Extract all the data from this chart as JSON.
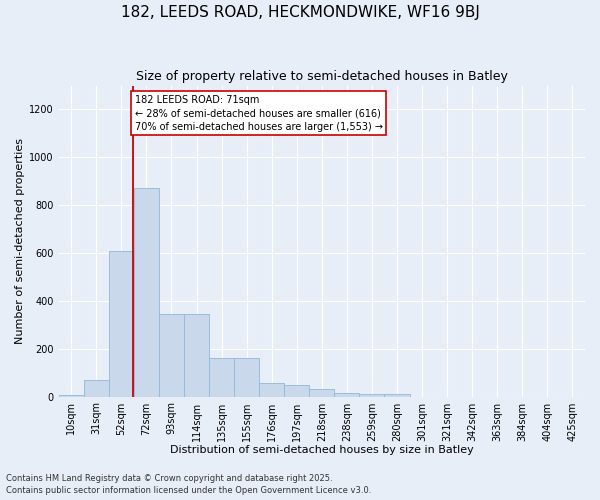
{
  "title": "182, LEEDS ROAD, HECKMONDWIKE, WF16 9BJ",
  "subtitle": "Size of property relative to semi-detached houses in Batley",
  "xlabel": "Distribution of semi-detached houses by size in Batley",
  "ylabel": "Number of semi-detached properties",
  "footnote1": "Contains HM Land Registry data © Crown copyright and database right 2025.",
  "footnote2": "Contains public sector information licensed under the Open Government Licence v3.0.",
  "bin_labels": [
    "10sqm",
    "31sqm",
    "52sqm",
    "72sqm",
    "93sqm",
    "114sqm",
    "135sqm",
    "155sqm",
    "176sqm",
    "197sqm",
    "218sqm",
    "238sqm",
    "259sqm",
    "280sqm",
    "301sqm",
    "321sqm",
    "342sqm",
    "363sqm",
    "384sqm",
    "404sqm",
    "425sqm"
  ],
  "bar_values": [
    5,
    70,
    610,
    870,
    345,
    345,
    160,
    160,
    55,
    50,
    30,
    15,
    12,
    12,
    0,
    0,
    0,
    0,
    0,
    0,
    0
  ],
  "bar_color": "#c9d9eb",
  "bar_edge_color": "#8fb8d8",
  "vline_x_index": 2.48,
  "vline_color": "#cc0000",
  "annotation_text": "182 LEEDS ROAD: 71sqm\n← 28% of semi-detached houses are smaller (616)\n70% of semi-detached houses are larger (1,553) →",
  "annotation_box_facecolor": "#ffffff",
  "annotation_box_edgecolor": "#cc0000",
  "ylim": [
    0,
    1300
  ],
  "yticks": [
    0,
    200,
    400,
    600,
    800,
    1000,
    1200
  ],
  "background_color": "#e8eef8",
  "plot_background_color": "#e8eef8",
  "grid_color": "#ffffff",
  "title_fontsize": 11,
  "subtitle_fontsize": 9,
  "tick_fontsize": 7,
  "label_fontsize": 8,
  "footnote_fontsize": 6
}
